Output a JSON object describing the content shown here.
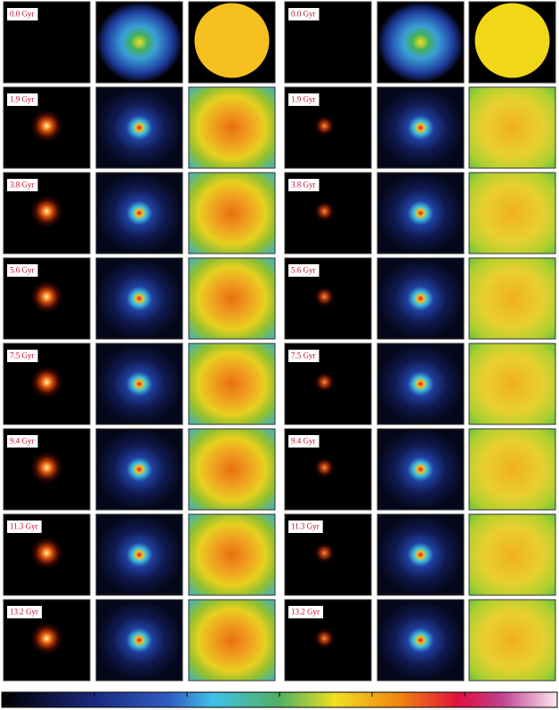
{
  "panels": {
    "rows": [
      [
        "0.0 Gyr",
        "0.0 Gyr"
      ],
      [
        "1.9 Gyr",
        "1.9 Gyr"
      ],
      [
        "3.8 Gyr",
        "3.8 Gyr"
      ],
      [
        "5.6 Gyr",
        "5.6 Gyr"
      ],
      [
        "7.5 Gyr",
        "7.5 Gyr"
      ],
      [
        "9.4 Gyr",
        "9.4 Gyr"
      ],
      [
        "11.3 Gyr",
        "11.3 Gyr"
      ],
      [
        "13.2 Gyr",
        "13.2 Gyr"
      ]
    ]
  }
}
